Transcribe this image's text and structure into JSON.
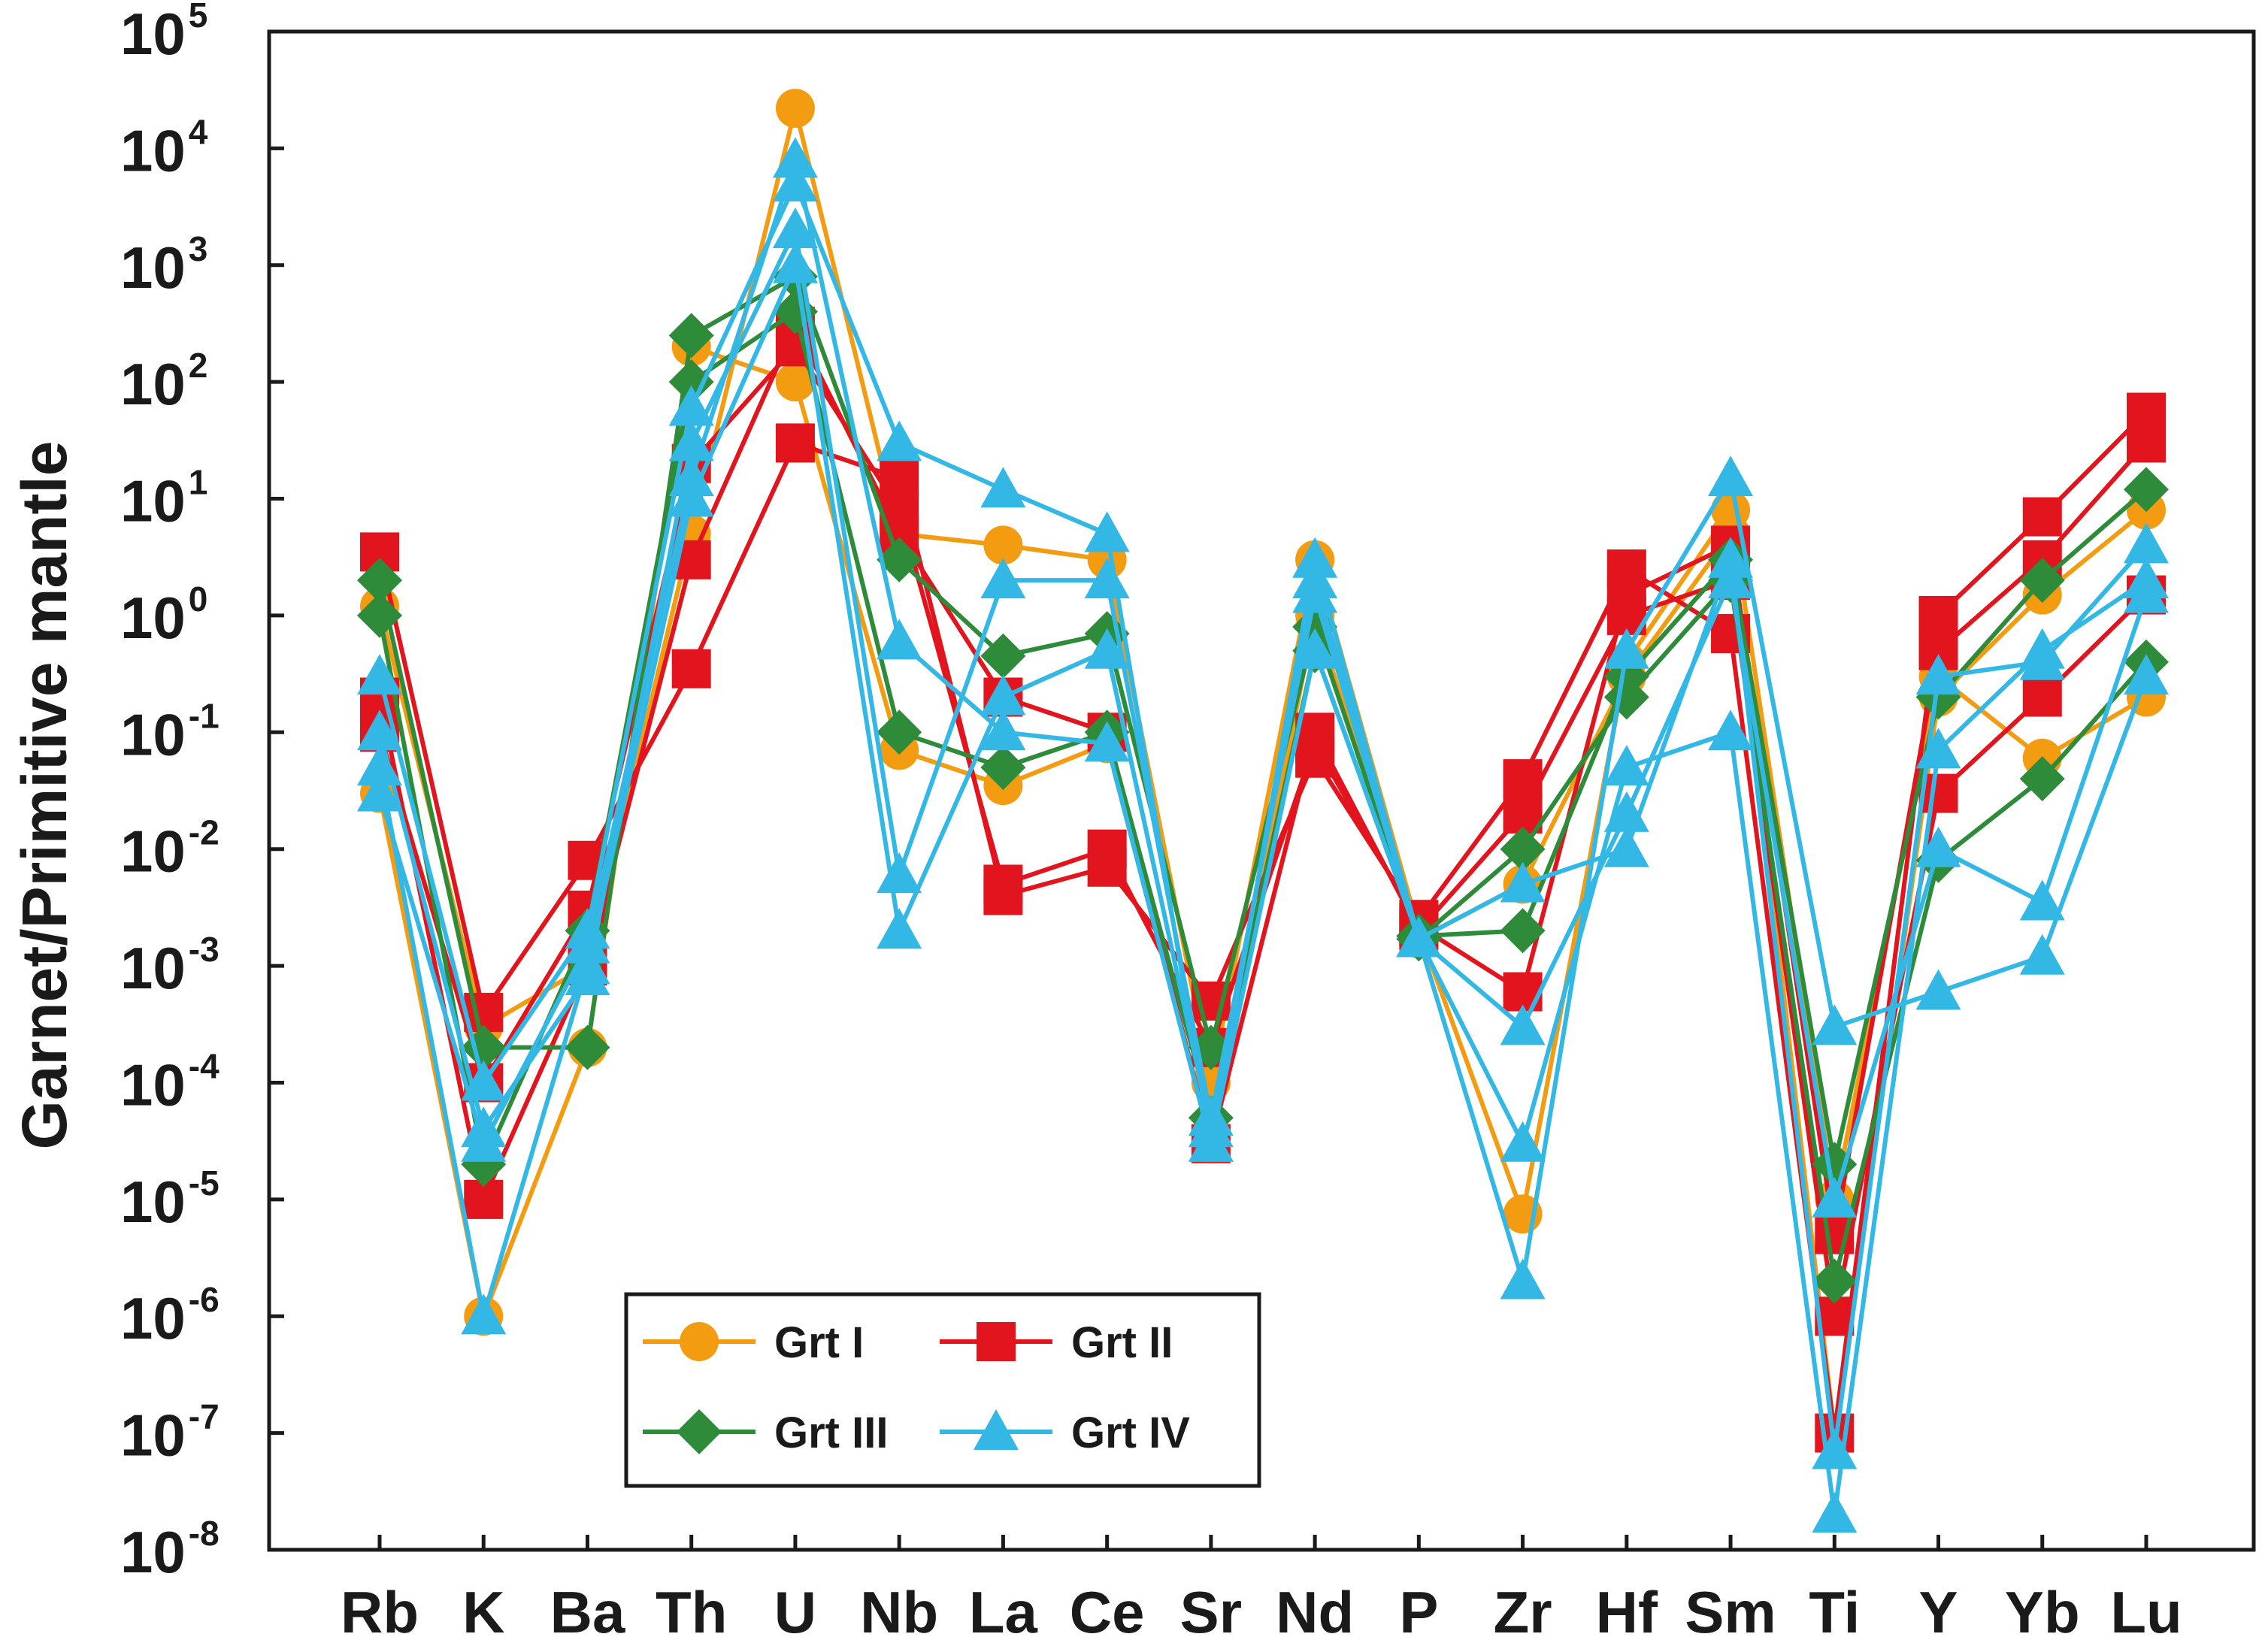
{
  "chart_data": {
    "type": "line",
    "title": "",
    "xlabel": "",
    "ylabel": "Garnet/Primitive mantle",
    "yscale": "log",
    "ylim": [
      1e-08,
      100000.0
    ],
    "grid": false,
    "legend_position": "lower-left",
    "categories": [
      "Rb",
      "K",
      "Ba",
      "Th",
      "U",
      "Nb",
      "La",
      "Ce",
      "Sr",
      "Nd",
      "P",
      "Zr",
      "Hf",
      "Sm",
      "Ti",
      "Y",
      "Yb",
      "Lu"
    ],
    "y_ticks": [
      {
        "base": "10",
        "exp": "5"
      },
      {
        "base": "10",
        "exp": "4"
      },
      {
        "base": "10",
        "exp": "3"
      },
      {
        "base": "10",
        "exp": "2"
      },
      {
        "base": "10",
        "exp": "1"
      },
      {
        "base": "10",
        "exp": "0"
      },
      {
        "base": "10",
        "exp": "-1"
      },
      {
        "base": "10",
        "exp": "-2"
      },
      {
        "base": "10",
        "exp": "-3"
      },
      {
        "base": "10",
        "exp": "-4"
      },
      {
        "base": "10",
        "exp": "-5"
      },
      {
        "base": "10",
        "exp": "-6"
      },
      {
        "base": "10",
        "exp": "-7"
      },
      {
        "base": "10",
        "exp": "-8"
      }
    ],
    "legend": [
      {
        "name": "Grt I",
        "marker": "circle",
        "color": "#f39c12"
      },
      {
        "name": "Grt II",
        "marker": "square",
        "color": "#e2141d"
      },
      {
        "name": "Grt III",
        "marker": "diamond",
        "color": "#2e8b3a"
      },
      {
        "name": "Grt IV",
        "marker": "triangle",
        "color": "#33b8e6"
      }
    ],
    "series": [
      {
        "name": "Grt I",
        "group": "Grt I",
        "marker": "circle",
        "color": "#f39c12",
        "values": [
          1.2,
          0.0003,
          0.001,
          5,
          22000,
          5,
          4,
          3,
          0.0001,
          3,
          0.002,
          7.5e-06,
          0.4,
          8,
          1e-05,
          0.3,
          0.06,
          0.2
        ]
      },
      {
        "name": "Grt I",
        "group": "Grt I",
        "marker": "circle",
        "color": "#f39c12",
        "values": [
          0.03,
          1e-06,
          0.0002,
          200,
          100,
          0.07,
          0.035,
          0.08,
          3e-05,
          1,
          0.0017,
          0.005,
          0.3,
          5,
          1e-07,
          0.2,
          1.5,
          8
        ]
      },
      {
        "name": "Grt II",
        "group": "Grt II",
        "marker": "square",
        "color": "#e2141d",
        "values": [
          3.5,
          0.0004,
          0.008,
          0.35,
          30,
          15,
          0.004,
          0.007,
          0.0005,
          0.06,
          0.0025,
          0.04,
          2.5,
          0.7,
          1e-07,
          1,
          7,
          55
        ]
      },
      {
        "name": "Grt II",
        "group": "Grt II",
        "marker": "square",
        "color": "#e2141d",
        "values": [
          0.2,
          1e-05,
          0.001,
          3,
          300,
          5,
          0.2,
          0.1,
          3e-05,
          0.1,
          0.002,
          0.02,
          1,
          2,
          1e-06,
          0.03,
          0.2,
          1.5
        ]
      },
      {
        "name": "Grt II",
        "group": "Grt II",
        "marker": "square",
        "color": "#e2141d",
        "values": [
          0.1,
          0.0001,
          0.003,
          20,
          200,
          8,
          0.005,
          0.01,
          0.0002,
          0.08,
          0.0022,
          0.0006,
          1.5,
          4,
          5e-06,
          0.5,
          3,
          30
        ]
      },
      {
        "name": "Grt III",
        "group": "Grt III",
        "marker": "diamond",
        "color": "#2e8b3a",
        "values": [
          2,
          0.0002,
          0.0002,
          250,
          800,
          3,
          0.45,
          0.7,
          0.0002,
          0.8,
          0.0018,
          0.002,
          0.3,
          3,
          2e-05,
          0.2,
          2,
          12
        ]
      },
      {
        "name": "Grt III",
        "group": "Grt III",
        "marker": "diamond",
        "color": "#2e8b3a",
        "values": [
          1,
          2e-05,
          0.002,
          100,
          400,
          0.1,
          0.05,
          0.1,
          5e-05,
          0.5,
          0.0017,
          0.01,
          0.2,
          2,
          2e-06,
          0.008,
          0.04,
          0.4
        ]
      },
      {
        "name": "Grt IV",
        "group": "Grt IV",
        "marker": "triangle",
        "color": "#33b8e6",
        "values": [
          0.3,
          0.0001,
          0.002,
          60,
          5000,
          30,
          12,
          5,
          3e-05,
          3,
          0.0017,
          2e-06,
          0.5,
          15,
          0.0003,
          0.0006,
          0.0012,
          0.3
        ]
      },
      {
        "name": "Grt IV",
        "group": "Grt IV",
        "marker": "triangle",
        "color": "#33b8e6",
        "values": [
          0.05,
          1e-06,
          0.001,
          10,
          1000,
          0.002,
          0.2,
          0.5,
          4e-05,
          2,
          0.0017,
          3e-05,
          0.05,
          0.1,
          2e-08,
          0.07,
          0.5,
          2
        ]
      },
      {
        "name": "Grt IV",
        "group": "Grt IV",
        "marker": "triangle",
        "color": "#33b8e6",
        "values": [
          0.1,
          4e-05,
          0.0008,
          30,
          2000,
          0.006,
          2,
          2,
          5e-05,
          1.5,
          0.0017,
          0.0003,
          0.02,
          2,
          1e-05,
          0.01,
          0.0035,
          1.5
        ]
      },
      {
        "name": "Grt IV",
        "group": "Grt IV",
        "marker": "triangle",
        "color": "#33b8e6",
        "values": [
          0.03,
          3e-05,
          0.0015,
          15,
          8000,
          0.6,
          0.1,
          0.08,
          3e-05,
          0.5,
          0.0017,
          0.005,
          0.01,
          3,
          7e-08,
          0.3,
          0.4,
          4
        ]
      }
    ]
  }
}
